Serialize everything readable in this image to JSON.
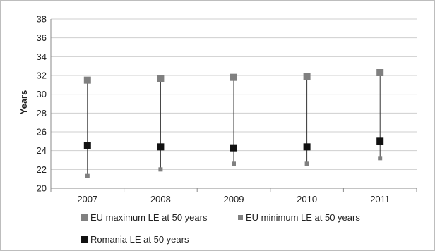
{
  "chart_data": {
    "type": "scatter",
    "title": "",
    "xlabel": "",
    "ylabel": "Years",
    "categories": [
      "2007",
      "2008",
      "2009",
      "2010",
      "2011"
    ],
    "ylim": [
      20,
      38
    ],
    "yticks": [
      "20",
      "22",
      "24",
      "26",
      "28",
      "30",
      "32",
      "34",
      "36",
      "38"
    ],
    "grid": true,
    "legend_position": "bottom",
    "series": [
      {
        "name": "EU maximum LE at 50 years",
        "color": "#808080",
        "marker": "square-large",
        "values": [
          31.5,
          31.7,
          31.8,
          31.9,
          32.3
        ]
      },
      {
        "name": "EU minimum LE at 50 years",
        "color": "#808080",
        "marker": "square-small",
        "values": [
          21.3,
          22.0,
          22.6,
          22.6,
          23.2
        ]
      },
      {
        "name": "Romania LE at 50 years",
        "color": "#111111",
        "marker": "square-large",
        "values": [
          24.5,
          24.4,
          24.3,
          24.4,
          25.0
        ]
      }
    ],
    "range_lines": true
  }
}
